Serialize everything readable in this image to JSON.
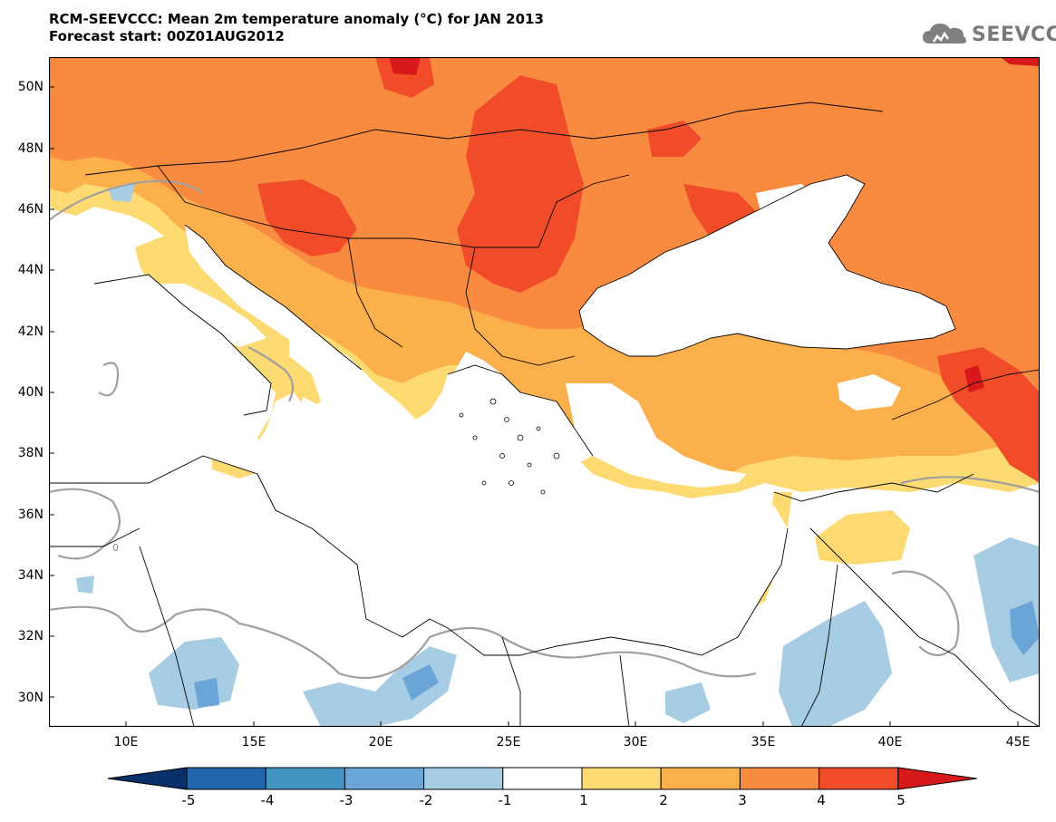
{
  "title": {
    "line1": "RCM-SEEVCCC: Mean 2m temperature anomaly (°C) for JAN 2013",
    "line2": "Forecast start: 00Z01AUG2012"
  },
  "logo": {
    "text": "SEEVCCC",
    "icon": "cloud-logo-icon"
  },
  "map": {
    "lat_labels": [
      "50N",
      "48N",
      "46N",
      "44N",
      "42N",
      "40N",
      "38N",
      "36N",
      "34N",
      "32N",
      "30N"
    ],
    "lon_labels": [
      "10E",
      "15E",
      "20E",
      "25E",
      "30E",
      "35E",
      "40E",
      "45E"
    ],
    "contour_label": "0"
  },
  "colorbar": {
    "labels": [
      "-5",
      "-4",
      "-3",
      "-2",
      "-1",
      "1",
      "2",
      "3",
      "4",
      "5"
    ],
    "colors": [
      "#08306b",
      "#2166ac",
      "#4393c3",
      "#6ba4d6",
      "#a6cde4",
      "#ffffff",
      "#fdda72",
      "#fbb04c",
      "#f88b3f",
      "#f04c2a",
      "#d7191c"
    ]
  }
}
